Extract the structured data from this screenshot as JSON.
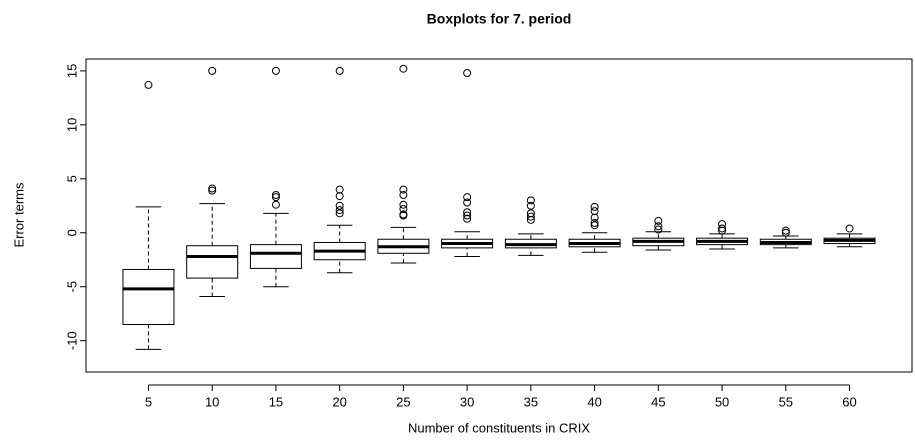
{
  "chart_data": {
    "type": "boxplot",
    "title": "Boxplots for 7. period",
    "x_label": "Number of constituents in CRIX",
    "y_label": "Error terms",
    "categories": [
      "5",
      "10",
      "15",
      "20",
      "25",
      "30",
      "35",
      "40",
      "45",
      "50",
      "55",
      "60"
    ],
    "ylim": [
      -12.9,
      16.1
    ],
    "yticks": [
      -10,
      -5,
      0,
      5,
      10,
      15
    ],
    "boxes": [
      {
        "whislo": -10.8,
        "q1": -8.5,
        "med": -5.2,
        "q3": -3.4,
        "whishi": 2.4,
        "fliers": [
          13.7
        ]
      },
      {
        "whislo": -5.9,
        "q1": -4.2,
        "med": -2.2,
        "q3": -1.2,
        "whishi": 2.7,
        "fliers": [
          3.9,
          4.1,
          15.0
        ]
      },
      {
        "whislo": -5.0,
        "q1": -3.3,
        "med": -1.9,
        "q3": -1.1,
        "whishi": 1.8,
        "fliers": [
          2.6,
          3.3,
          3.5,
          15.0
        ]
      },
      {
        "whislo": -3.7,
        "q1": -2.5,
        "med": -1.7,
        "q3": -0.9,
        "whishi": 0.7,
        "fliers": [
          1.8,
          2.1,
          2.5,
          3.4,
          4.0,
          15.0
        ]
      },
      {
        "whislo": -2.8,
        "q1": -1.9,
        "med": -1.3,
        "q3": -0.6,
        "whishi": 0.5,
        "fliers": [
          1.6,
          1.7,
          2.2,
          2.6,
          3.5,
          4.0,
          15.2
        ]
      },
      {
        "whislo": -2.2,
        "q1": -1.4,
        "med": -1.0,
        "q3": -0.6,
        "whishi": 0.1,
        "fliers": [
          1.3,
          1.6,
          1.9,
          2.8,
          3.3,
          14.8
        ]
      },
      {
        "whislo": -2.1,
        "q1": -1.4,
        "med": -1.1,
        "q3": -0.6,
        "whishi": -0.1,
        "fliers": [
          1.2,
          1.5,
          1.8,
          2.5,
          3.0
        ]
      },
      {
        "whislo": -1.8,
        "q1": -1.3,
        "med": -1.0,
        "q3": -0.6,
        "whishi": 0.0,
        "fliers": [
          0.7,
          0.9,
          1.4,
          2.0,
          2.4
        ]
      },
      {
        "whislo": -1.6,
        "q1": -1.2,
        "med": -0.8,
        "q3": -0.5,
        "whishi": 0.1,
        "fliers": [
          0.3,
          0.6,
          1.1
        ]
      },
      {
        "whislo": -1.5,
        "q1": -1.1,
        "med": -0.8,
        "q3": -0.5,
        "whishi": -0.1,
        "fliers": [
          0.2,
          0.4,
          0.8
        ]
      },
      {
        "whislo": -1.4,
        "q1": -1.1,
        "med": -0.9,
        "q3": -0.6,
        "whishi": -0.3,
        "fliers": [
          0.0,
          0.2
        ]
      },
      {
        "whislo": -1.3,
        "q1": -1.0,
        "med": -0.7,
        "q3": -0.5,
        "whishi": -0.1,
        "fliers": [
          0.4
        ]
      }
    ]
  }
}
